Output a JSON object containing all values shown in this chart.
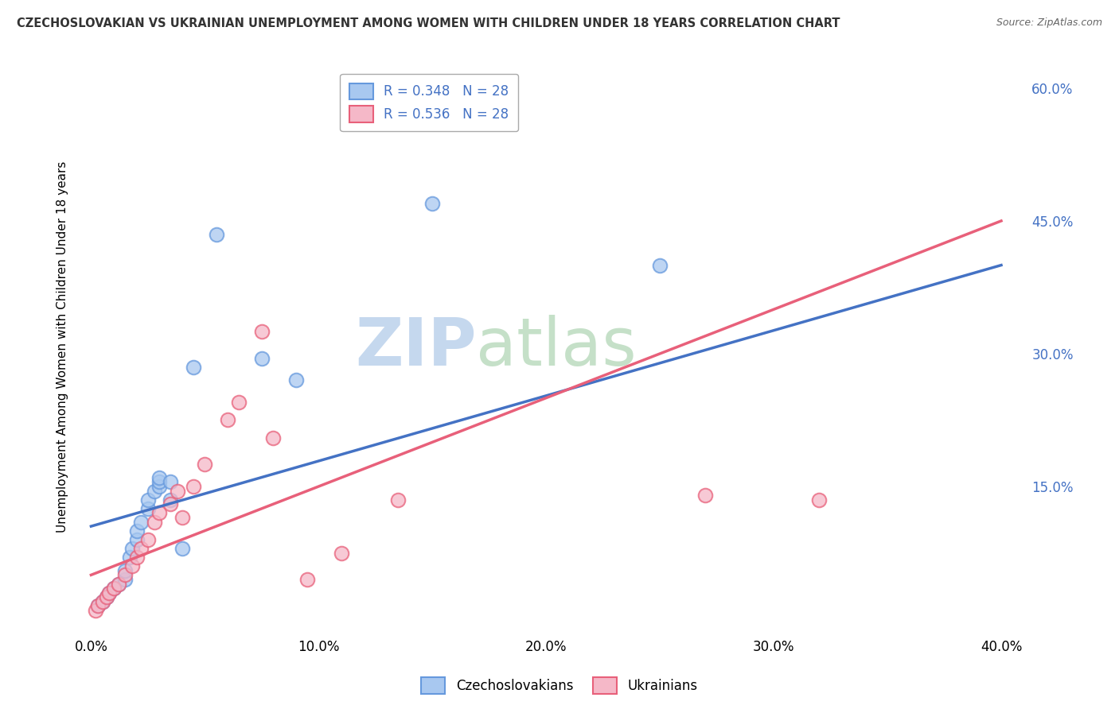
{
  "title": "CZECHOSLOVAKIAN VS UKRAINIAN UNEMPLOYMENT AMONG WOMEN WITH CHILDREN UNDER 18 YEARS CORRELATION CHART",
  "source": "Source: ZipAtlas.com",
  "ylabel": "Unemployment Among Women with Children Under 18 years",
  "xlabel_ticks": [
    "0.0%",
    "10.0%",
    "20.0%",
    "30.0%",
    "40.0%"
  ],
  "xlabel_vals": [
    0,
    10,
    20,
    30,
    40
  ],
  "ylabel_ticks_right": [
    "60.0%",
    "45.0%",
    "30.0%",
    "15.0%"
  ],
  "ylabel_vals_right": [
    60,
    45,
    30,
    15
  ],
  "xlim": [
    -0.5,
    41
  ],
  "ylim": [
    -1.5,
    63
  ],
  "czech_R": "0.348",
  "czech_N": "28",
  "ukr_R": "0.536",
  "ukr_N": "28",
  "czech_color": "#a8c8f0",
  "ukr_color": "#f5b8c8",
  "czech_edge_color": "#6699dd",
  "ukr_edge_color": "#e8607a",
  "czech_line_color": "#4472c4",
  "ukr_line_color": "#e8607a",
  "background_color": "#ffffff",
  "grid_color": "#cccccc",
  "watermark_zip": "ZIP",
  "watermark_atlas": "atlas",
  "watermark_color_zip": "#c8d8ee",
  "watermark_color_atlas": "#c8d8cc",
  "legend_label_color": "#4472c4",
  "czech_scatter_x": [
    0.3,
    0.5,
    0.7,
    0.8,
    1.0,
    1.2,
    1.5,
    1.5,
    1.7,
    1.8,
    2.0,
    2.0,
    2.2,
    2.5,
    2.5,
    2.8,
    3.0,
    3.0,
    3.0,
    3.5,
    3.5,
    4.0,
    4.5,
    5.5,
    7.5,
    9.0,
    15.0,
    25.0
  ],
  "czech_scatter_y": [
    1.5,
    2.0,
    2.5,
    3.0,
    3.5,
    4.0,
    4.5,
    5.5,
    7.0,
    8.0,
    9.0,
    10.0,
    11.0,
    12.5,
    13.5,
    14.5,
    15.0,
    15.5,
    16.0,
    15.5,
    13.5,
    8.0,
    28.5,
    43.5,
    29.5,
    27.0,
    47.0,
    40.0
  ],
  "ukr_scatter_x": [
    0.2,
    0.3,
    0.5,
    0.7,
    0.8,
    1.0,
    1.2,
    1.5,
    1.8,
    2.0,
    2.2,
    2.5,
    2.8,
    3.0,
    3.5,
    3.8,
    4.0,
    4.5,
    5.0,
    6.0,
    6.5,
    7.5,
    8.0,
    9.5,
    11.0,
    13.5,
    27.0,
    32.0
  ],
  "ukr_scatter_y": [
    1.0,
    1.5,
    2.0,
    2.5,
    3.0,
    3.5,
    4.0,
    5.0,
    6.0,
    7.0,
    8.0,
    9.0,
    11.0,
    12.0,
    13.0,
    14.5,
    11.5,
    15.0,
    17.5,
    22.5,
    24.5,
    32.5,
    20.5,
    4.5,
    7.5,
    13.5,
    14.0,
    13.5
  ],
  "czech_line_x": [
    0,
    40
  ],
  "czech_line_y": [
    10.5,
    40.0
  ],
  "ukr_line_x": [
    0,
    40
  ],
  "ukr_line_y": [
    5.0,
    45.0
  ]
}
